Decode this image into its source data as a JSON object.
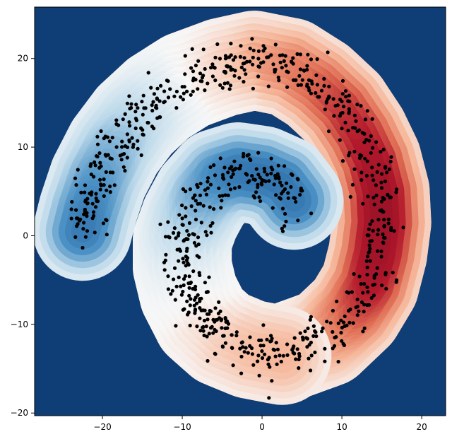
{
  "chart_data": {
    "type": "contour-scatter",
    "title": "",
    "xlabel": "",
    "ylabel": "",
    "xlim": [
      -28.5,
      23
    ],
    "ylim": [
      -20.3,
      25.8
    ],
    "xticks": [
      -20,
      -10,
      0,
      10,
      20
    ],
    "yticks": [
      -20,
      -10,
      0,
      10,
      20
    ],
    "xtick_labels": [
      "−20",
      "−10",
      "0",
      "10",
      "20"
    ],
    "ytick_labels": [
      "−20",
      "−10",
      "0",
      "10",
      "20"
    ],
    "grid": false,
    "colormap": "RdBu_r",
    "colors": {
      "background": "#0f3d75",
      "dark_blue": "#1d5a9a",
      "mid_blue": "#4a90c4",
      "light_blue": "#bcd9ea",
      "white": "#f7f7f7",
      "light_red": "#f6b79a",
      "mid_red": "#e06f55",
      "dark_red": "#b2182b",
      "deep_red": "#8c0d25",
      "points": "#000000"
    },
    "spiral_arms": [
      {
        "name": "",
        "centerline": [
          [
            2.8,
            -13.2
          ],
          [
            8.0,
            -11.5
          ],
          [
            11.5,
            -8.5
          ],
          [
            13.5,
            -5.5
          ],
          [
            14.5,
            -2.0
          ],
          [
            15.0,
            1.5
          ],
          [
            14.8,
            5.0
          ],
          [
            13.8,
            8.5
          ],
          [
            12.2,
            11.5
          ],
          [
            10.0,
            14.5
          ],
          [
            7.0,
            17.0
          ],
          [
            3.5,
            19.0
          ],
          [
            -1.0,
            19.8
          ],
          [
            -5.0,
            19.0
          ],
          [
            -9.5,
            17.5
          ],
          [
            -13.0,
            15.5
          ],
          [
            -16.0,
            13.0
          ],
          [
            -18.5,
            10.0
          ],
          [
            -20.5,
            6.5
          ],
          [
            -21.8,
            3.0
          ],
          [
            -22.5,
            0.5
          ]
        ],
        "class_value": [
          -0.02,
          0.35,
          0.6,
          0.75,
          0.82,
          0.85,
          0.85,
          0.8,
          0.75,
          0.7,
          0.62,
          0.52,
          0.4,
          0.22,
          0.05,
          -0.12,
          -0.28,
          -0.42,
          -0.55,
          -0.65,
          -0.7
        ],
        "point_count": 560
      },
      {
        "name": "",
        "centerline": [
          [
            2.5,
            -13.5
          ],
          [
            -1.5,
            -12.8
          ],
          [
            -5.0,
            -11.5
          ],
          [
            -7.5,
            -9.5
          ],
          [
            -9.2,
            -6.5
          ],
          [
            -10.0,
            -3.5
          ],
          [
            -10.0,
            -0.5
          ],
          [
            -9.0,
            2.0
          ],
          [
            -7.5,
            4.5
          ],
          [
            -5.5,
            6.5
          ],
          [
            -3.0,
            7.2
          ],
          [
            0.0,
            6.8
          ],
          [
            2.5,
            5.8
          ],
          [
            4.0,
            4.0
          ]
        ],
        "class_value": [
          0.3,
          0.28,
          0.22,
          0.12,
          0.0,
          -0.08,
          -0.2,
          -0.35,
          -0.5,
          -0.62,
          -0.7,
          -0.72,
          -0.72,
          -0.7
        ],
        "point_count": 340
      }
    ],
    "outlier_points": [
      [
        2.5,
        0.8
      ],
      [
        3.0,
        1.6
      ],
      [
        2.8,
        1.1
      ],
      [
        2.6,
        0.5
      ],
      [
        -14.6,
        14.4
      ]
    ]
  }
}
